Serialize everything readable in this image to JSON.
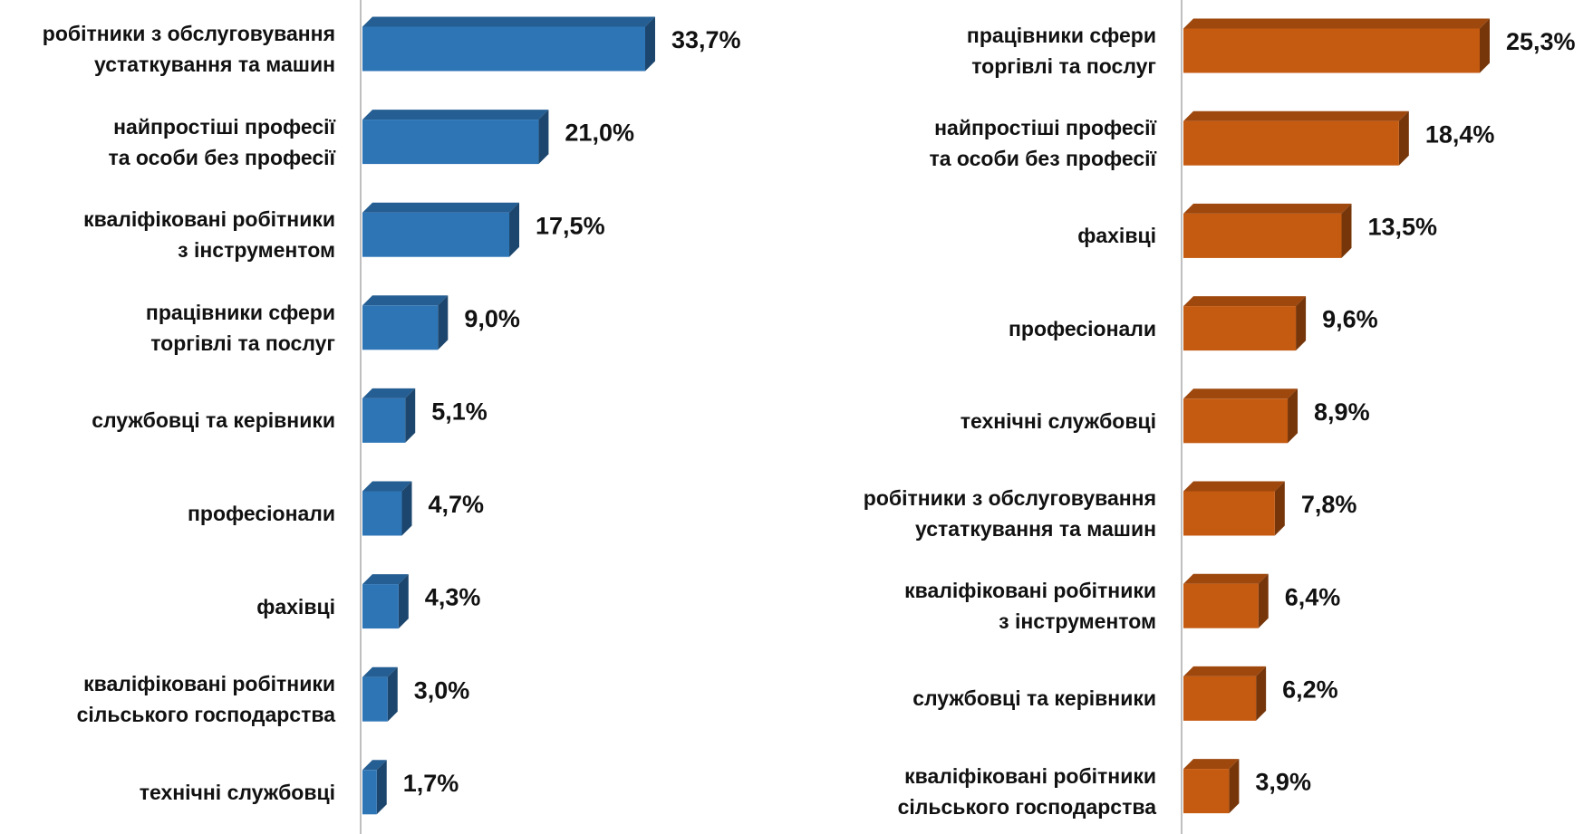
{
  "chart_data": [
    {
      "type": "bar",
      "orientation": "horizontal",
      "color": "#2e75b6",
      "categories": [
        "робітники з обслуговування\nустаткування та машин",
        "найпростіші професії\nта особи без професії",
        "кваліфіковані робітники\nз інструментом",
        "працівники сфери\nторгівлі та послуг",
        "службовці та керівники",
        "професіонали",
        "фахівці",
        "кваліфіковані робітники\nсільського господарства",
        "технічні службовці"
      ],
      "values": [
        33.7,
        21.0,
        17.5,
        9.0,
        5.1,
        4.7,
        4.3,
        3.0,
        1.7
      ],
      "value_labels": [
        "33,7%",
        "21,0%",
        "17,5%",
        "9,0%",
        "5,1%",
        "4,7%",
        "4,3%",
        "3,0%",
        "1,7%"
      ]
    },
    {
      "type": "bar",
      "orientation": "horizontal",
      "color": "#c55a11",
      "categories": [
        "працівники сфери\nторгівлі та послуг",
        "найпростіші професії\nта особи без професії",
        "фахівці",
        "професіонали",
        "технічні службовці",
        "робітники з обслуговування\nустаткування та машин",
        "кваліфіковані робітники\nз інструментом",
        "службовці та керівники",
        "кваліфіковані робітники\nсільського господарства"
      ],
      "values": [
        25.3,
        18.4,
        13.5,
        9.6,
        8.9,
        7.8,
        6.4,
        6.2,
        3.9
      ],
      "value_labels": [
        "25,3%",
        "18,4%",
        "13,5%",
        "9,6%",
        "8,9%",
        "7,8%",
        "6,4%",
        "6,2%",
        "3,9%"
      ]
    }
  ]
}
